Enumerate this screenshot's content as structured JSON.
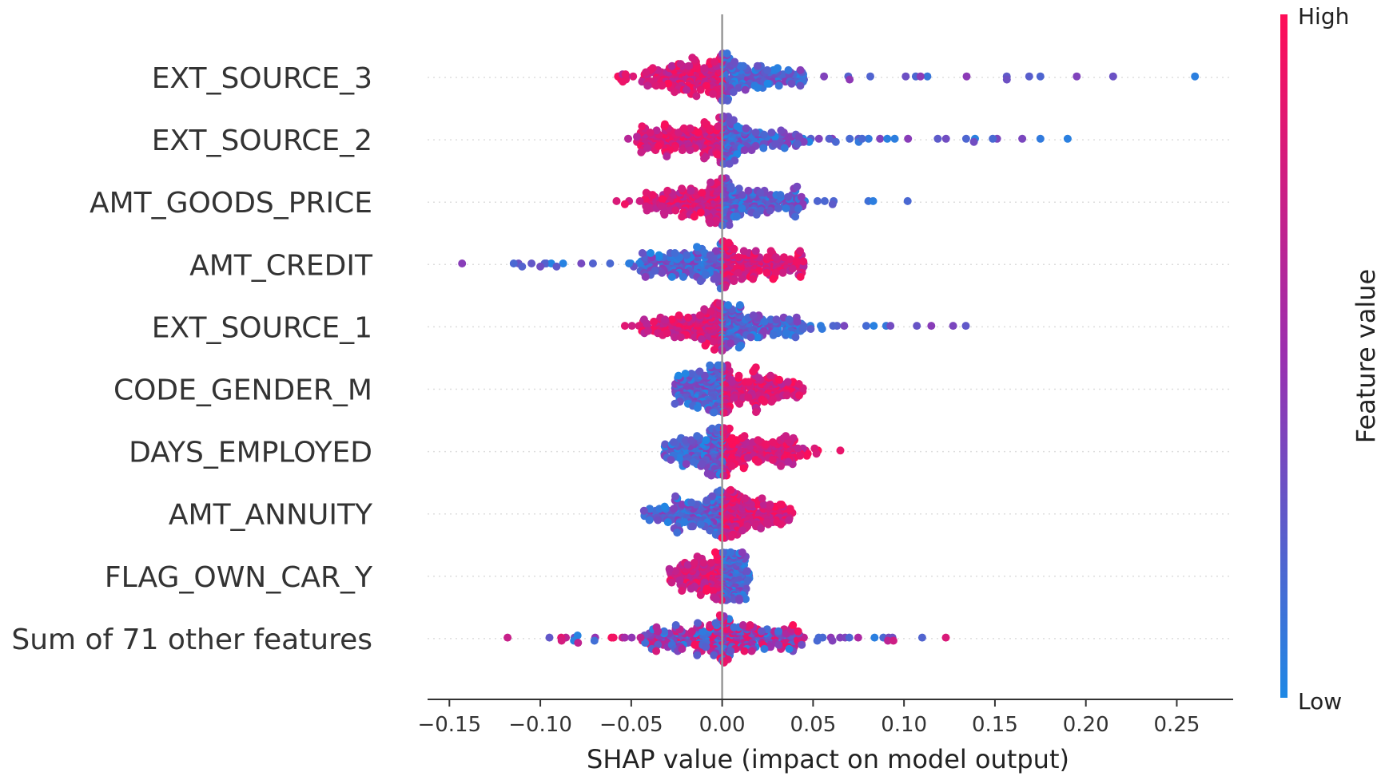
{
  "chart_data": {
    "type": "scatter",
    "subtype": "shap-beeswarm",
    "xlabel": "SHAP value (impact on model output)",
    "xlim": [
      -0.162,
      0.281
    ],
    "xticks": [
      -0.15,
      -0.1,
      -0.05,
      0.0,
      0.05,
      0.1,
      0.15,
      0.2,
      0.25
    ],
    "xtick_labels": [
      "−0.15",
      "−0.10",
      "−0.05",
      "0.00",
      "0.05",
      "0.10",
      "0.15",
      "0.20",
      "0.25"
    ],
    "grid": false,
    "zero_line": true,
    "colorbar": {
      "title": "Feature value",
      "high_label": "High",
      "low_label": "Low",
      "high_color": "#ff0d57",
      "mid_color": "#9b2fb0",
      "low_color": "#1e88e5",
      "position": "right"
    },
    "features": [
      {
        "name": "EXT_SOURCE_3",
        "min": -0.07,
        "max": 0.26,
        "outliers": [
          0.175,
          0.195,
          0.215,
          0.26
        ],
        "high_side": "negative"
      },
      {
        "name": "EXT_SOURCE_2",
        "min": -0.067,
        "max": 0.19,
        "outliers": [
          0.165,
          0.175,
          0.19
        ],
        "high_side": "negative"
      },
      {
        "name": "AMT_GOODS_PRICE",
        "min": -0.073,
        "max": 0.102,
        "outliers": [
          0.083,
          0.102
        ],
        "high_side": "negative"
      },
      {
        "name": "AMT_CREDIT",
        "min": -0.143,
        "max": 0.05,
        "outliers": [
          -0.143,
          -0.11,
          -0.1
        ],
        "high_side": "positive"
      },
      {
        "name": "EXT_SOURCE_1",
        "min": -0.066,
        "max": 0.134,
        "outliers": [
          0.115,
          0.127,
          0.134
        ],
        "high_side": "negative"
      },
      {
        "name": "CODE_GENDER_M",
        "min": -0.026,
        "max": 0.045,
        "outliers": [
          -0.026
        ],
        "high_side": "positive"
      },
      {
        "name": "DAYS_EMPLOYED",
        "min": -0.032,
        "max": 0.065,
        "outliers": [
          0.065
        ],
        "high_side": "positive"
      },
      {
        "name": "AMT_ANNUITY",
        "min": -0.043,
        "max": 0.039,
        "outliers": [
          -0.043
        ],
        "high_side": "positive"
      },
      {
        "name": "FLAG_OWN_CAR_Y",
        "min": -0.029,
        "max": 0.015,
        "outliers": [
          -0.029
        ],
        "high_side": "negative"
      },
      {
        "name": "Sum of 71 other features",
        "min": -0.118,
        "max": 0.123,
        "outliers": [
          -0.118,
          -0.095,
          0.11,
          0.123
        ],
        "high_side": "mixed"
      }
    ]
  }
}
